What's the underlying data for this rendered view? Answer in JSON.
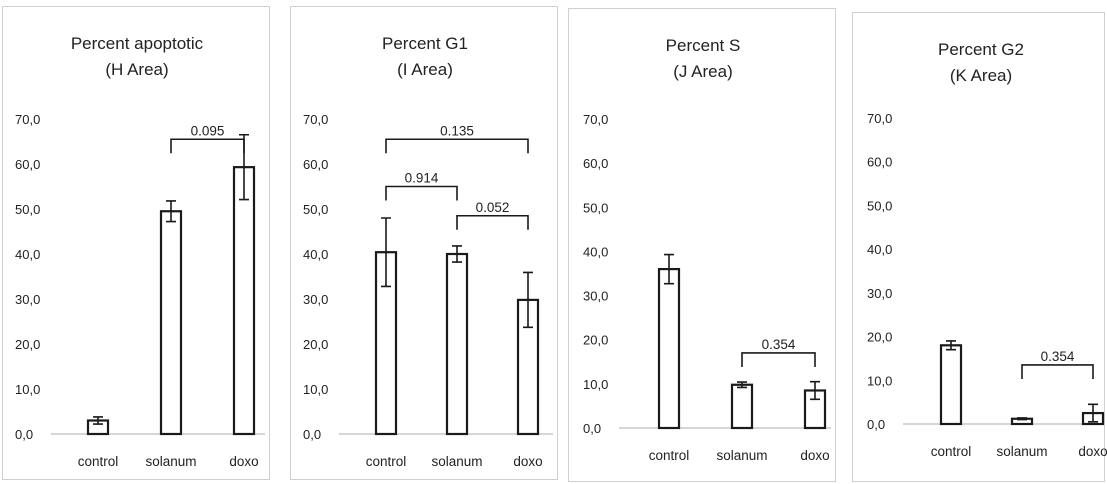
{
  "chart_data": [
    {
      "type": "bar",
      "title": [
        "Percent apoptotic",
        "(H Area)"
      ],
      "categories": [
        "control",
        "solanum",
        "doxo"
      ],
      "values": [
        3.0,
        49.5,
        59.3
      ],
      "errors": [
        0.8,
        2.3,
        7.2
      ],
      "ylim": [
        0,
        70
      ],
      "yticks": [
        "0,0",
        "10,0",
        "20,0",
        "30,0",
        "40,0",
        "50,0",
        "60,0",
        "70,0"
      ],
      "grid": false,
      "annotations": [
        {
          "from": 1,
          "to": 2,
          "label": "0.095",
          "level": 65.5
        }
      ]
    },
    {
      "type": "bar",
      "title": [
        "Percent G1",
        "(I Area)"
      ],
      "categories": [
        "control",
        "solanum",
        "doxo"
      ],
      "values": [
        40.4,
        40.0,
        29.8
      ],
      "errors": [
        7.6,
        1.8,
        6.1
      ],
      "ylim": [
        0,
        70
      ],
      "yticks": [
        "0,0",
        "10,0",
        "20,0",
        "30,0",
        "40,0",
        "50,0",
        "60,0",
        "70,0"
      ],
      "grid": false,
      "annotations": [
        {
          "from": 0,
          "to": 2,
          "label": "0.135",
          "level": 65.5
        },
        {
          "from": 0,
          "to": 1,
          "label": "0.914",
          "level": 55.0
        },
        {
          "from": 1,
          "to": 2,
          "label": "0.052",
          "level": 48.5
        }
      ]
    },
    {
      "type": "bar",
      "title": [
        "Percent S",
        "(J Area)"
      ],
      "categories": [
        "control",
        "solanum",
        "doxo"
      ],
      "values": [
        36.0,
        9.8,
        8.5
      ],
      "errors": [
        3.3,
        0.6,
        2.0
      ],
      "ylim": [
        0,
        70
      ],
      "yticks": [
        "0,0",
        "10,0",
        "20,0",
        "30,0",
        "40,0",
        "50,0",
        "60,0",
        "70,0"
      ],
      "grid": false,
      "annotations": [
        {
          "from": 1,
          "to": 2,
          "label": "0.354",
          "level": 17.0
        }
      ]
    },
    {
      "type": "bar",
      "title": [
        "Percent G2",
        "(K Area)"
      ],
      "categories": [
        "control",
        "solanum",
        "doxo"
      ],
      "values": [
        18.0,
        1.2,
        2.5
      ],
      "errors": [
        1.0,
        0.2,
        2.0
      ],
      "ylim": [
        0,
        70
      ],
      "yticks": [
        "0,0",
        "10,0",
        "20,0",
        "30,0",
        "40,0",
        "50,0",
        "60,0",
        "70,0"
      ],
      "grid": false,
      "annotations": [
        {
          "from": 1,
          "to": 2,
          "label": "0.354",
          "level": 13.5
        }
      ]
    }
  ]
}
